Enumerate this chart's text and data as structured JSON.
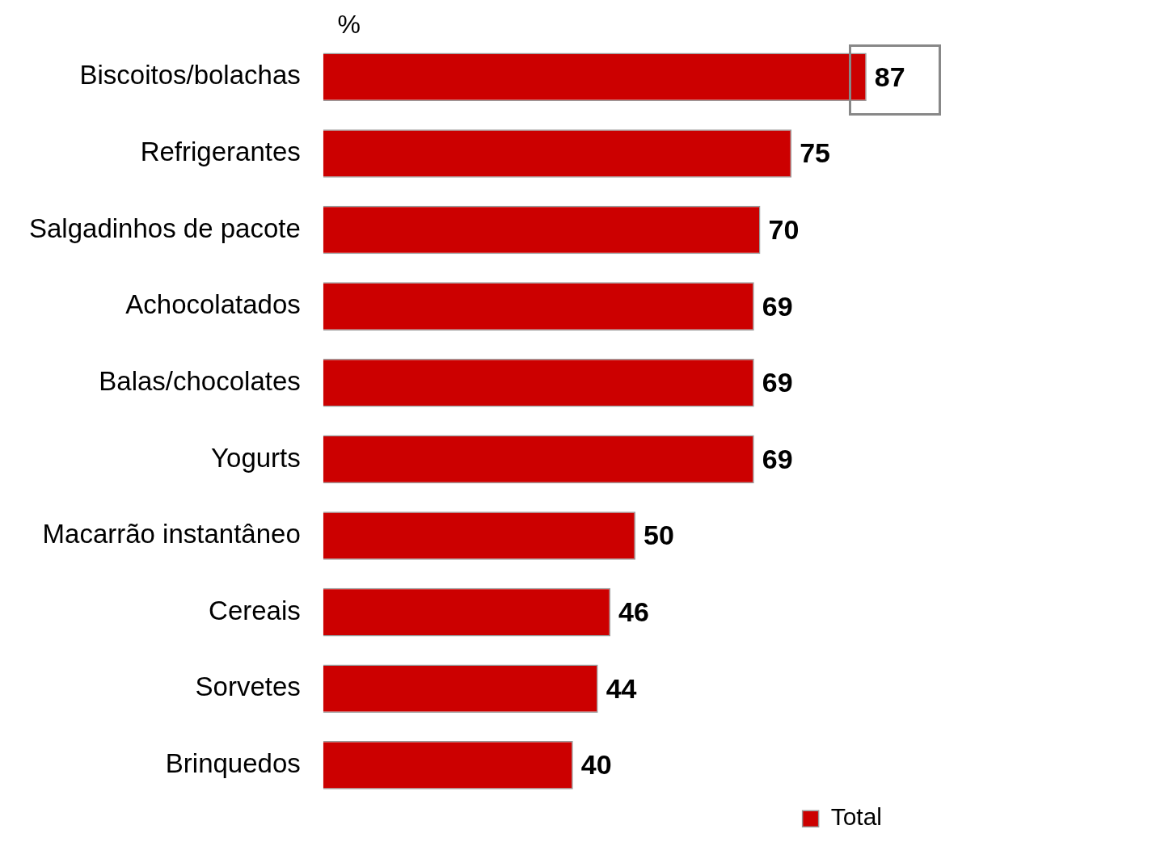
{
  "chart_data": {
    "type": "bar",
    "orientation": "horizontal",
    "title": "%",
    "categories": [
      "Biscoitos/bolachas",
      "Refrigerantes",
      "Salgadinhos de pacote",
      "Achocolatados",
      "Balas/chocolates",
      "Yogurts",
      "Macarrão instantâneo",
      "Cereais",
      "Sorvetes",
      "Brinquedos"
    ],
    "series": [
      {
        "name": "Total",
        "color": "#cc0000",
        "values": [
          87,
          75,
          70,
          69,
          69,
          69,
          50,
          46,
          44,
          40
        ]
      }
    ],
    "data_labels": true,
    "legend": "bottom right",
    "grid": false,
    "tick_labels": "y"
  }
}
